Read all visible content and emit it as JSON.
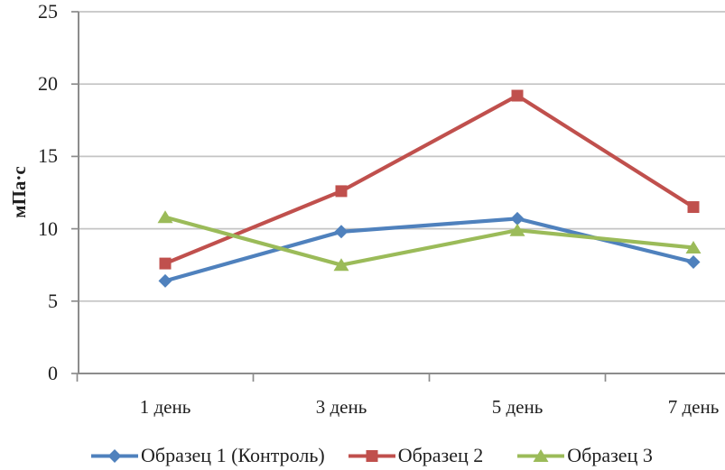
{
  "chart_data": {
    "type": "line",
    "title": "",
    "ylabel": "мПа·с",
    "xlabel": "",
    "categories": [
      "1 день",
      "3 день",
      "5 день",
      "7 день"
    ],
    "yticks": [
      0,
      5,
      10,
      15,
      20,
      25
    ],
    "ylim": [
      0,
      25
    ],
    "grid": true,
    "legend_position": "bottom",
    "axis_color": "#8C8C8C",
    "grid_color": "#C4C4C4",
    "text_color": "#1f1f1f",
    "series": [
      {
        "name": "Образец 1 (Контроль)",
        "marker": "diamond",
        "color": "#4F81BD",
        "values": [
          6.4,
          9.8,
          10.7,
          7.7
        ]
      },
      {
        "name": "Образец 2",
        "marker": "square",
        "color": "#C0504D",
        "values": [
          7.6,
          12.6,
          19.2,
          11.5
        ]
      },
      {
        "name": "Образец 3",
        "marker": "triangle",
        "color": "#9BBB59",
        "values": [
          10.8,
          7.5,
          9.9,
          8.7
        ]
      }
    ]
  }
}
